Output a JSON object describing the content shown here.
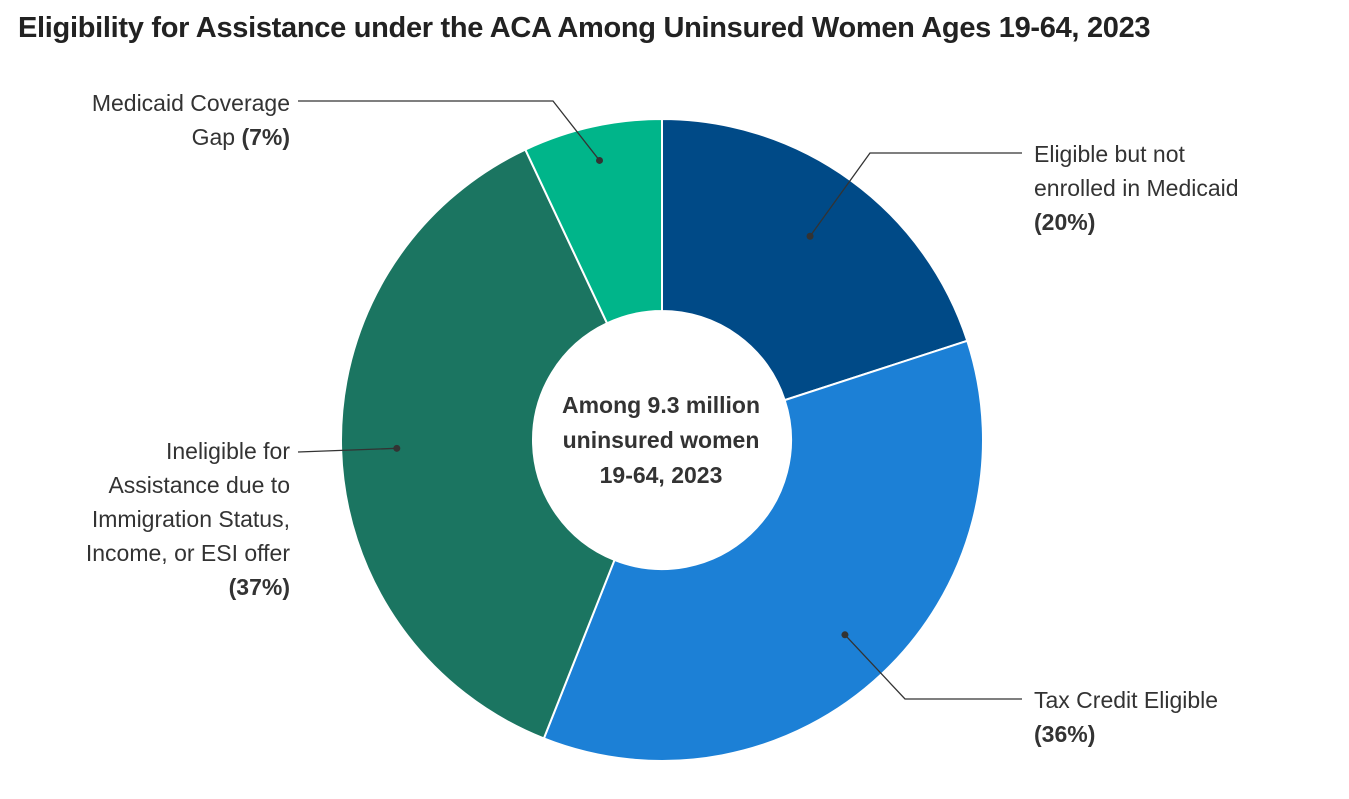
{
  "chart_data": {
    "type": "donut",
    "title": "Eligibility for Assistance under the ACA Among Uninsured Women Ages 19-64, 2023",
    "center_label": [
      "Among 9.3 million",
      "uninsured women",
      "19-64, 2023"
    ],
    "unit": "%",
    "slices": [
      {
        "name": "Eligible but not enrolled in Medicaid",
        "label_lines": [
          "Eligible but not",
          "enrolled in Medicaid"
        ],
        "value_label": "(20%)",
        "value": 20,
        "color": "#004A87"
      },
      {
        "name": "Tax Credit Eligible",
        "label_lines": [
          "Tax Credit Eligible"
        ],
        "value_label": "(36%)",
        "value": 36,
        "color": "#1C80D6"
      },
      {
        "name": "Ineligible for Assistance due to Immigration Status, Income, or ESI offer",
        "label_lines": [
          "Ineligible for",
          "Assistance due to",
          "Immigration Status,",
          "Income, or ESI offer"
        ],
        "value_label": "(37%)",
        "value": 37,
        "color": "#1B7561"
      },
      {
        "name": "Medicaid Coverage Gap",
        "label_lines": [
          "Medicaid Coverage",
          "Gap"
        ],
        "value_label": "(7%)",
        "value": 7,
        "color": "#00B58A"
      }
    ]
  }
}
